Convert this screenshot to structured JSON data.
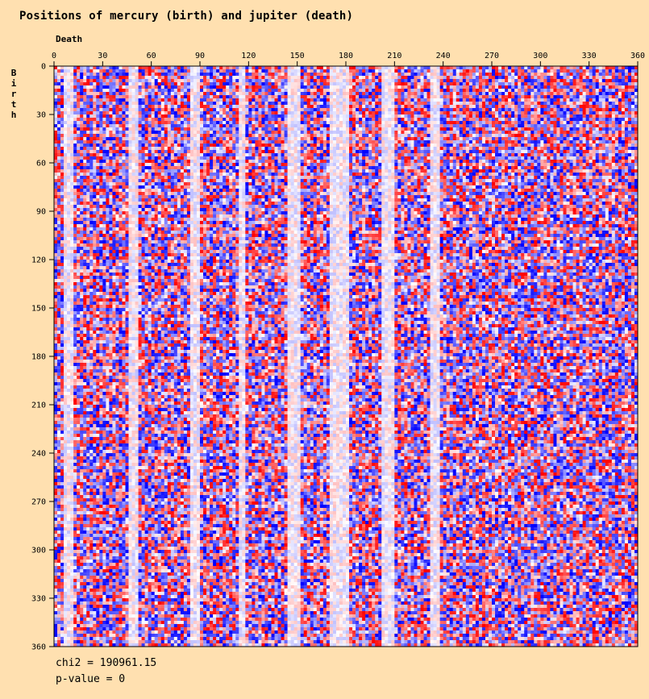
{
  "chart_data": {
    "type": "heatmap",
    "title": "Positions of mercury (birth) and jupiter (death)",
    "xlabel": "Death",
    "ylabel": "Birth",
    "xlim": [
      0,
      360
    ],
    "ylim": [
      0,
      360
    ],
    "x_ticks": [
      "0",
      "30",
      "60",
      "90",
      "120",
      "150",
      "180",
      "210",
      "240",
      "270",
      "300",
      "330",
      "360"
    ],
    "y_ticks": [
      "0",
      "30",
      "60",
      "90",
      "120",
      "150",
      "180",
      "210",
      "240",
      "270",
      "300",
      "330",
      "360"
    ],
    "bin_size_degrees": 2,
    "grid_size": [
      180,
      180
    ],
    "color_scale": {
      "negative": "#0000ff",
      "neutral": "#ffffff",
      "positive": "#ff0000"
    },
    "pale_columns_death_degrees": [
      [
        6,
        12
      ],
      [
        46,
        52
      ],
      [
        84,
        90
      ],
      [
        114,
        118
      ],
      [
        144,
        152
      ],
      [
        170,
        182
      ],
      [
        202,
        210
      ],
      [
        232,
        238
      ]
    ],
    "chi2": "chi2 = 190961.15",
    "p_value": "p-value = 0"
  }
}
